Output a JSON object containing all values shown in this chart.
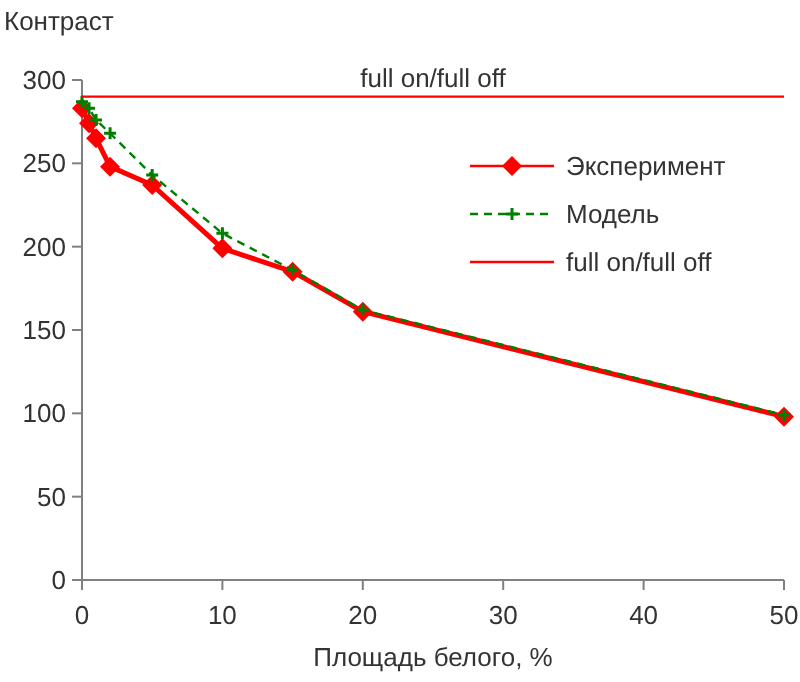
{
  "chart_data": {
    "type": "line",
    "ylabel": "Контраст",
    "xlabel": "Площадь белого, %",
    "xlim": [
      0,
      50
    ],
    "xticks": [
      0,
      10,
      20,
      30,
      40,
      50
    ],
    "ylim": [
      0,
      300
    ],
    "yticks": [
      0,
      50,
      100,
      150,
      200,
      250,
      300
    ],
    "grid": false,
    "legend": "right",
    "annotations": [
      {
        "text": "full on/full off",
        "x": 25,
        "y": 290
      }
    ],
    "series": [
      {
        "name": "Эксперимент",
        "color": "#ff0000",
        "marker": "diamond",
        "line_style": "solid",
        "x": [
          0,
          0.5,
          1,
          2,
          5,
          10,
          15,
          20,
          50
        ],
        "values": [
          283,
          274,
          265,
          248,
          237,
          199,
          185,
          161,
          98
        ]
      },
      {
        "name": "Модель",
        "color": "#008000",
        "marker": "cross",
        "line_style": "dashed",
        "x": [
          0,
          0.5,
          1,
          2,
          5,
          10,
          15,
          20,
          50
        ],
        "values": [
          287,
          283,
          276,
          268,
          243,
          208,
          186,
          162,
          99
        ]
      },
      {
        "name": "full on/full off",
        "color": "#ff0000",
        "marker": "none",
        "line_style": "solid",
        "x": [
          0,
          50
        ],
        "values": [
          290,
          290
        ]
      }
    ]
  }
}
